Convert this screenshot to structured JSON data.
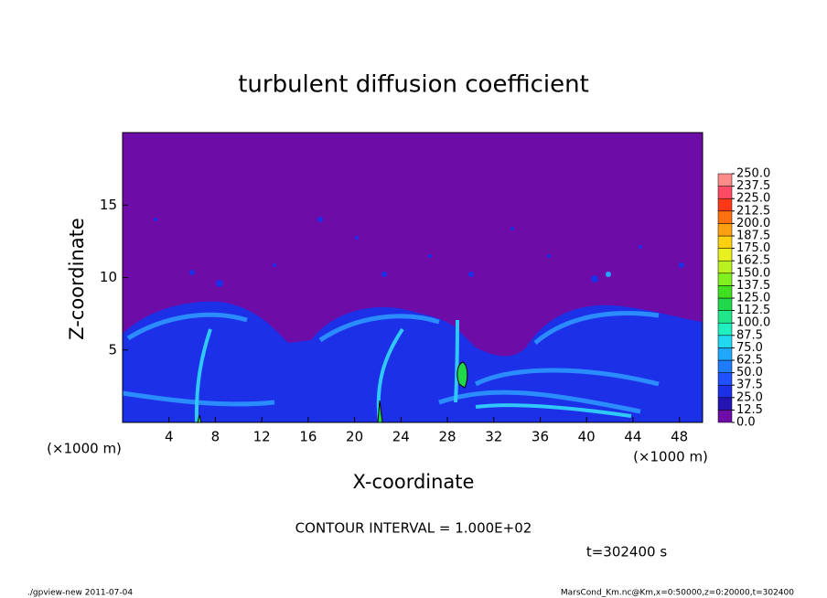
{
  "chart_data": {
    "type": "contour",
    "title": "turbulent diffusion coefficient",
    "x_label": "X-coordinate",
    "y_label": "Z-coordinate",
    "x_unit_label": "(×1000 m)",
    "xlim": [
      0,
      50
    ],
    "xticks": [
      4,
      8,
      12,
      16,
      20,
      24,
      28,
      32,
      36,
      40,
      44,
      48
    ],
    "ylim": [
      0,
      20
    ],
    "yticks": [
      5,
      10,
      15
    ],
    "contour_interval_label": "CONTOUR INTERVAL = 1.000E+02",
    "time_label": "t=302400 s",
    "colorbar": {
      "levels": [
        {
          "value": 0,
          "label": "0.0"
        },
        {
          "value": 12.5,
          "label": "12.5"
        },
        {
          "value": 25,
          "label": "25.0"
        },
        {
          "value": 37.5,
          "label": "37.5"
        },
        {
          "value": 50,
          "label": "50.0"
        },
        {
          "value": 62.5,
          "label": "62.5"
        },
        {
          "value": 75,
          "label": "75.0"
        },
        {
          "value": 87.5,
          "label": "87.5"
        },
        {
          "value": 100,
          "label": "100.0"
        },
        {
          "value": 112.5,
          "label": "112.5"
        },
        {
          "value": 125,
          "label": "125.0"
        },
        {
          "value": 137.5,
          "label": "137.5"
        },
        {
          "value": 150,
          "label": "150.0"
        },
        {
          "value": 162.5,
          "label": "162.5"
        },
        {
          "value": 175,
          "label": "175.0"
        },
        {
          "value": 187.5,
          "label": "187.5"
        },
        {
          "value": 200,
          "label": "200.0"
        },
        {
          "value": 212.5,
          "label": "212.5"
        },
        {
          "value": 225,
          "label": "225.0"
        },
        {
          "value": 237.5,
          "label": "237.5"
        },
        {
          "value": 250,
          "label": "250.0"
        }
      ],
      "colors": [
        "#6e0ca8",
        "#2414b4",
        "#1c30e8",
        "#2050ff",
        "#1f7cff",
        "#20a8ff",
        "#20d8f0",
        "#20f0c0",
        "#20e88a",
        "#20d84a",
        "#40e020",
        "#80f020",
        "#b8f020",
        "#e8f020",
        "#ffd010",
        "#ffa010",
        "#ff7010",
        "#ff3818",
        "#ff4a66",
        "#ff8a8a"
      ]
    },
    "footer_left": "./gpview-new  2011-07-04",
    "footer_right": "MarsCond_Km.nc@Km,x=0:50000,z=0:20000,t=302400"
  }
}
